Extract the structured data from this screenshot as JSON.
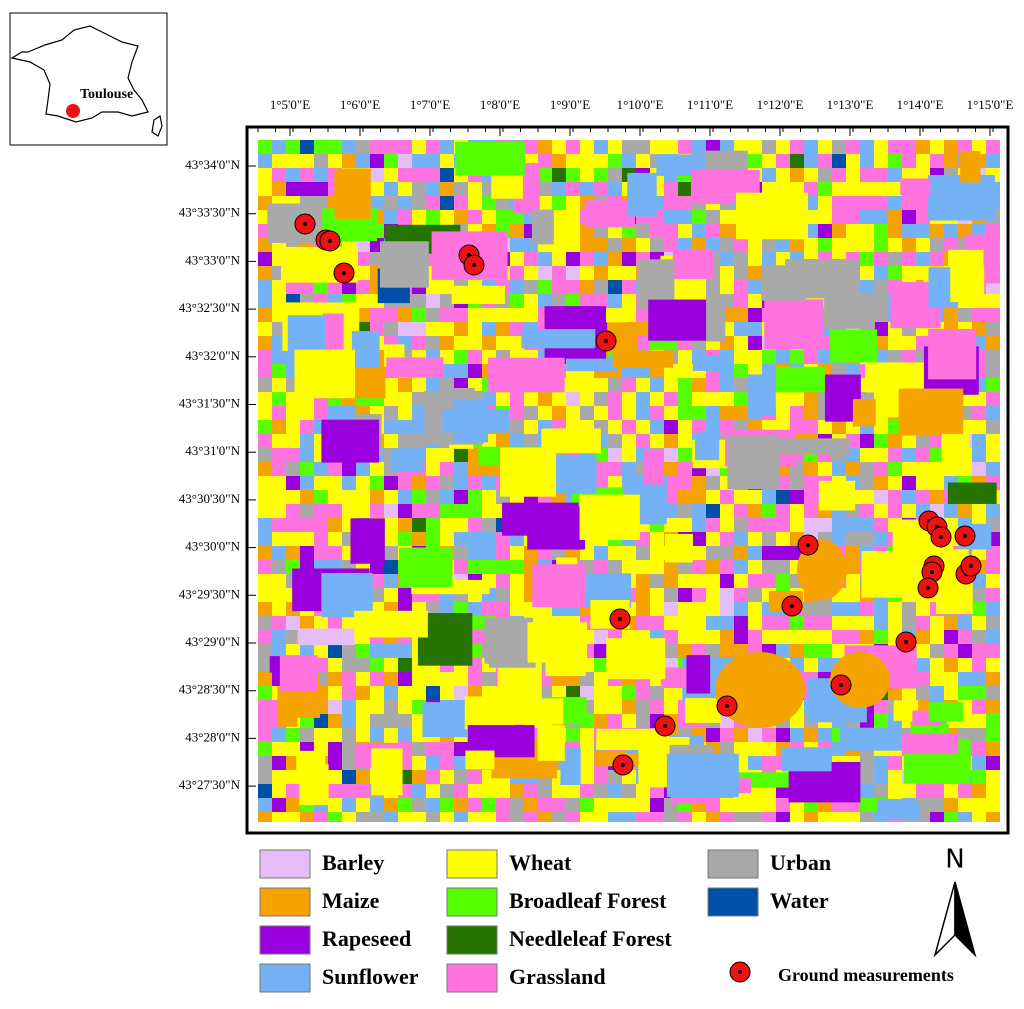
{
  "map": {
    "inset": {
      "label": "Toulouse"
    },
    "lon_ticks": [
      "1°5'0\"E",
      "1°6'0\"E",
      "1°7'0\"E",
      "1°8'0\"E",
      "1°9'0\"E",
      "1°10'0\"E",
      "1°11'0\"E",
      "1°12'0\"E",
      "1°13'0\"E",
      "1°14'0\"E",
      "1°15'0\"E"
    ],
    "lat_ticks": [
      "43°34'0\"N",
      "43°33'30\"N",
      "43°33'0\"N",
      "43°32'30\"N",
      "43°32'0\"N",
      "43°31'30\"N",
      "43°31'0\"N",
      "43°30'30\"N",
      "43°30'0\"N",
      "43°29'30\"N",
      "43°29'0\"N",
      "43°28'30\"N",
      "43°28'0\"N",
      "43°27'30\"N"
    ],
    "legend": [
      {
        "name": "Barley",
        "color": "#e6bef7"
      },
      {
        "name": "Maize",
        "color": "#f5a300"
      },
      {
        "name": "Rapeseed",
        "color": "#9900dd"
      },
      {
        "name": "Sunflower",
        "color": "#75b2f5"
      },
      {
        "name": "Wheat",
        "color": "#ffff00"
      },
      {
        "name": "Broadleaf Forest",
        "color": "#55ff00"
      },
      {
        "name": "Needleleaf Forest",
        "color": "#267300"
      },
      {
        "name": "Grassland",
        "color": "#ff73df"
      },
      {
        "name": "Urban",
        "color": "#a9a9a9"
      },
      {
        "name": "Water",
        "color": "#0050a8"
      }
    ],
    "north": "N",
    "points_label": "Ground measurements"
  }
}
